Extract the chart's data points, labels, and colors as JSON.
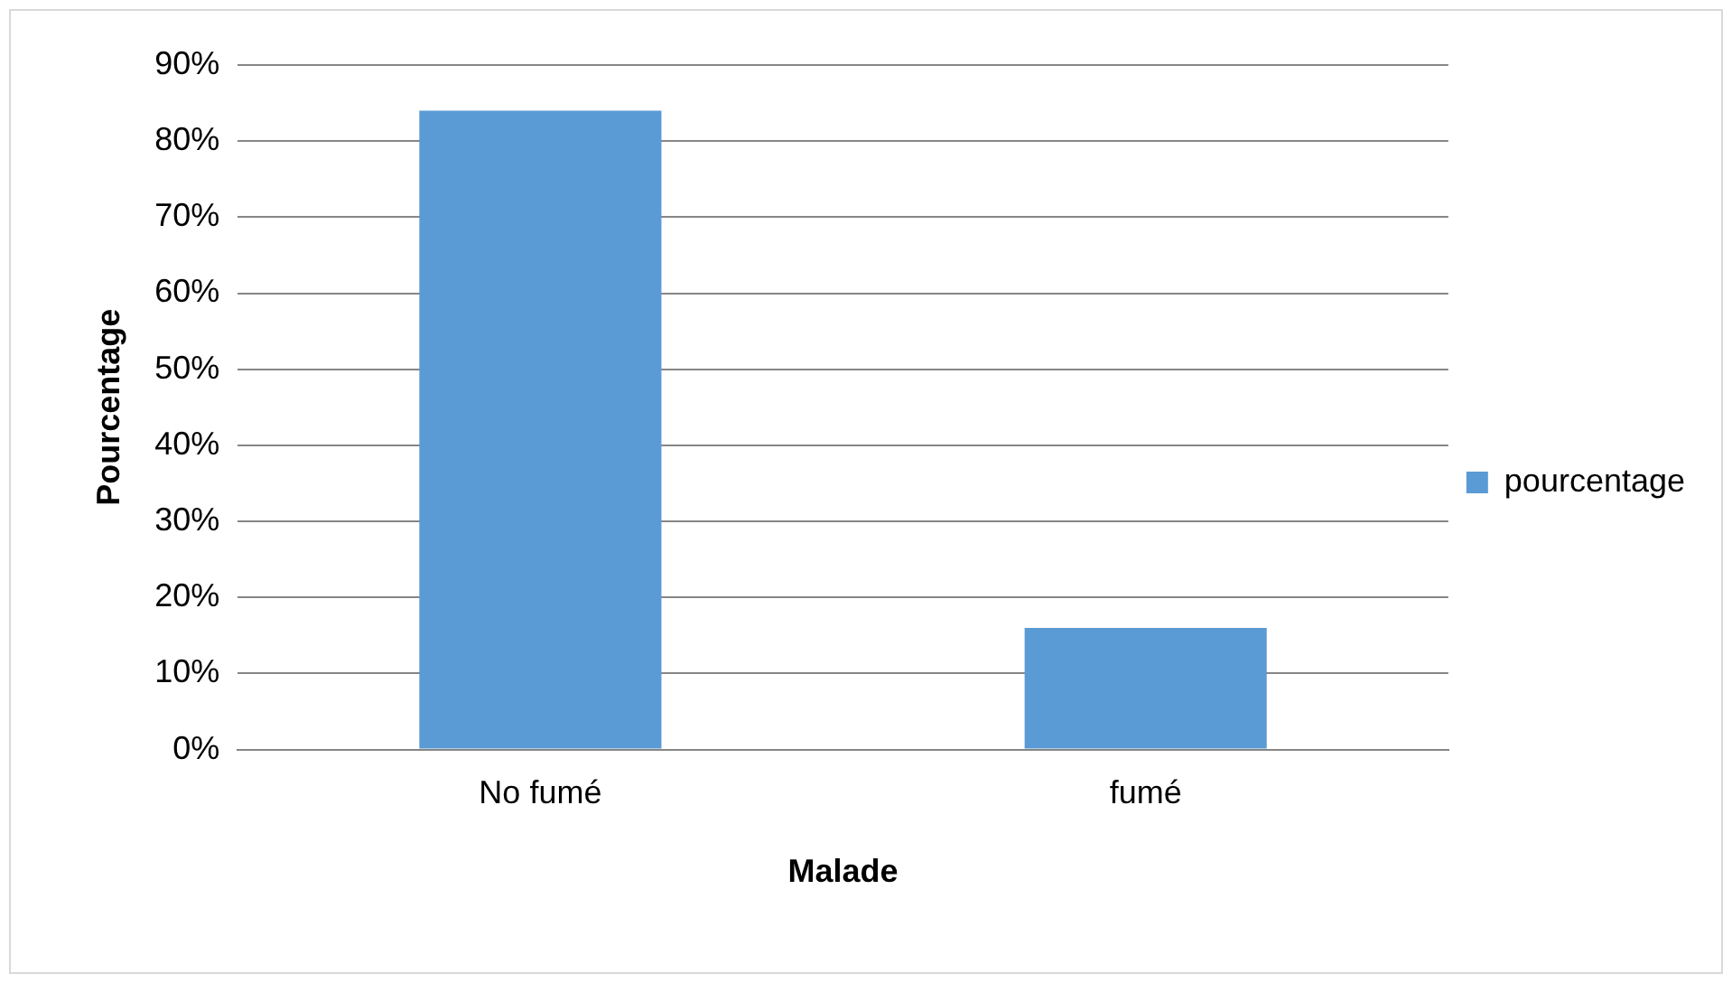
{
  "chart_data": {
    "type": "bar",
    "xlabel": "Malade",
    "ylabel": "Pourcentage",
    "categories": [
      "No fumé",
      "fumé"
    ],
    "series": [
      {
        "name": "pourcentage",
        "color": "#5b9bd5",
        "values": [
          84,
          16
        ]
      }
    ],
    "ylim": [
      0,
      90
    ],
    "yticks": [
      {
        "value": 0,
        "label": "0%"
      },
      {
        "value": 10,
        "label": "10%"
      },
      {
        "value": 20,
        "label": "20%"
      },
      {
        "value": 30,
        "label": "30%"
      },
      {
        "value": 40,
        "label": "40%"
      },
      {
        "value": 50,
        "label": "50%"
      },
      {
        "value": 60,
        "label": "60%"
      },
      {
        "value": 70,
        "label": "70%"
      },
      {
        "value": 80,
        "label": "80%"
      },
      {
        "value": 90,
        "label": "90%"
      }
    ],
    "grid": "y",
    "legend": "right"
  }
}
